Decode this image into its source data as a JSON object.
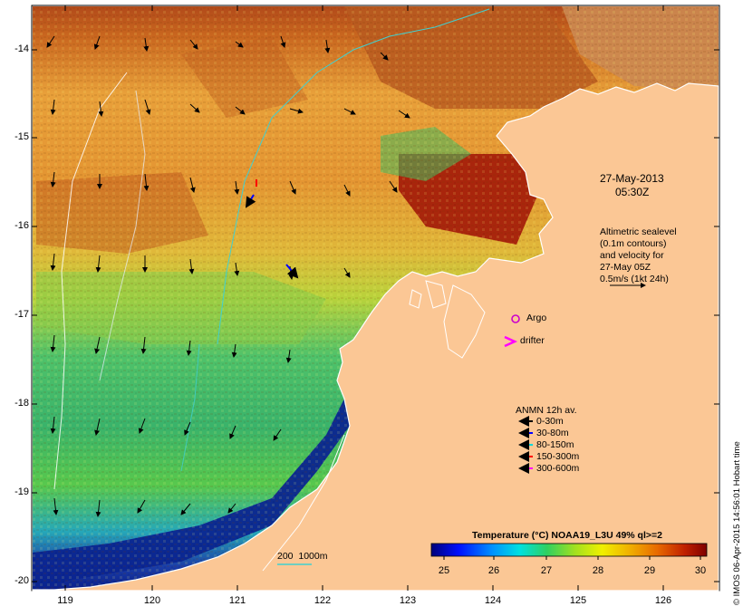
{
  "map": {
    "date": "27-May-2013",
    "time": "05:30Z",
    "altimetry_note": [
      "Altimetric sealevel",
      "(0.1m contours)",
      "and velocity for",
      "27-May 05Z",
      "0.5m/s (1kt 24h)"
    ],
    "argo_label": "Argo",
    "drifter_label": "drifter",
    "depth_label": "200  1000m",
    "y_ticks": [
      "-14",
      "-15",
      "-16",
      "-17",
      "-18",
      "-19",
      "-20"
    ],
    "x_ticks": [
      "119",
      "120",
      "121",
      "122",
      "123",
      "124",
      "125",
      "126"
    ],
    "credit": "© IMOS 06-Apr-2015 14:56:01 Hobart time"
  },
  "legend": {
    "title": "ANMN 12h av.",
    "items": [
      {
        "label": "0-30m",
        "color": "#000000"
      },
      {
        "label": "30-80m",
        "color": "#0000ff"
      },
      {
        "label": "80-150m",
        "color": "#00d8d8"
      },
      {
        "label": "150-300m",
        "color": "#ff0000"
      },
      {
        "label": "300-600m",
        "color": "#ff00ff"
      }
    ]
  },
  "colorbar": {
    "title": "Temperature (°C) NOAA19_L3U 49% ql>=2",
    "ticks": [
      "25",
      "26",
      "27",
      "28",
      "29",
      "30"
    ]
  },
  "colors": {
    "land": "#fbc795",
    "coast": "#ffffff",
    "argo": "#cc00cc",
    "drifter": "#ff00ff"
  }
}
